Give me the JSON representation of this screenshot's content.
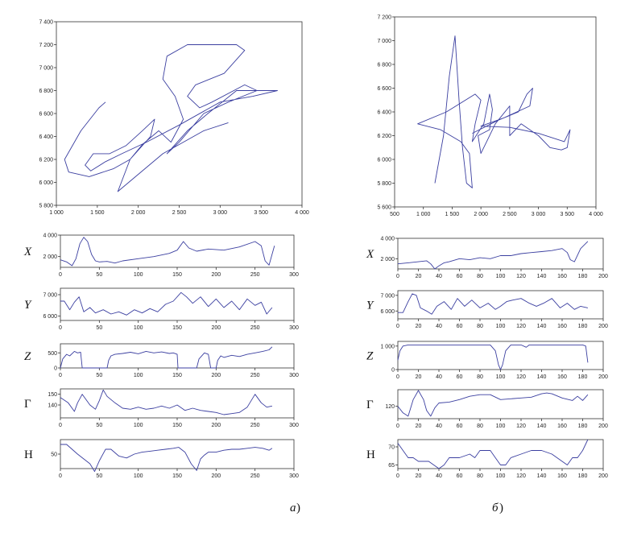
{
  "captions": {
    "a_letter": "а",
    "b_letter": "б",
    "paren": ")"
  },
  "colors": {
    "line": "#3b3fa0",
    "axis": "#333333"
  },
  "chart_data": [
    {
      "type": "line",
      "panel": "a",
      "role": "signature",
      "xlim": [
        1000,
        4000
      ],
      "ylim": [
        5800,
        7400
      ],
      "xticks": [
        "1 000",
        "1 500",
        "2 000",
        "2 500",
        "3 000",
        "3 500",
        "4 000"
      ],
      "yticks": [
        "5 800",
        "6 000",
        "6 200",
        "6 400",
        "6 600",
        "6 800",
        "7 000",
        "7 200",
        "7 400"
      ],
      "points": [
        [
          1600,
          6700
        ],
        [
          1520,
          6650
        ],
        [
          1300,
          6450
        ],
        [
          1100,
          6200
        ],
        [
          1150,
          6090
        ],
        [
          1400,
          6050
        ],
        [
          1700,
          6120
        ],
        [
          1900,
          6200
        ],
        [
          2050,
          6330
        ],
        [
          2250,
          6450
        ],
        [
          2400,
          6350
        ],
        [
          2550,
          6550
        ],
        [
          2450,
          6750
        ],
        [
          2300,
          6900
        ],
        [
          2350,
          7100
        ],
        [
          2600,
          7200
        ],
        [
          3200,
          7200
        ],
        [
          3300,
          7150
        ],
        [
          3050,
          6950
        ],
        [
          2700,
          6850
        ],
        [
          2600,
          6750
        ],
        [
          2750,
          6650
        ],
        [
          2900,
          6700
        ],
        [
          3300,
          6850
        ],
        [
          3450,
          6800
        ],
        [
          3100,
          6700
        ],
        [
          2800,
          6600
        ],
        [
          2500,
          6350
        ],
        [
          2350,
          6250
        ],
        [
          2600,
          6450
        ],
        [
          2850,
          6600
        ],
        [
          3200,
          6800
        ],
        [
          3700,
          6800
        ],
        [
          3400,
          6750
        ],
        [
          3000,
          6700
        ],
        [
          2500,
          6500
        ],
        [
          2100,
          6350
        ],
        [
          1800,
          6250
        ],
        [
          1600,
          6180
        ],
        [
          1420,
          6100
        ],
        [
          1350,
          6150
        ],
        [
          1450,
          6250
        ],
        [
          1650,
          6250
        ],
        [
          1850,
          6320
        ],
        [
          2050,
          6450
        ],
        [
          2200,
          6550
        ],
        [
          2150,
          6400
        ],
        [
          1900,
          6200
        ],
        [
          1750,
          5920
        ],
        [
          2300,
          6250
        ],
        [
          2800,
          6450
        ],
        [
          3100,
          6520
        ]
      ]
    },
    {
      "type": "line",
      "panel": "b",
      "role": "signature",
      "xlim": [
        500,
        4000
      ],
      "ylim": [
        5600,
        7200
      ],
      "xticks": [
        "500",
        "1 000",
        "1 500",
        "2 000",
        "2 500",
        "3 000",
        "3 500",
        "4 000"
      ],
      "yticks": [
        "5 600",
        "5 800",
        "6 000",
        "6 200",
        "6 400",
        "6 600",
        "6 800",
        "7 000",
        "7 200"
      ],
      "points": [
        [
          1200,
          5800
        ],
        [
          1350,
          6200
        ],
        [
          1450,
          6700
        ],
        [
          1550,
          7040
        ],
        [
          1620,
          6500
        ],
        [
          1680,
          6100
        ],
        [
          1750,
          5800
        ],
        [
          1850,
          5760
        ],
        [
          1800,
          6050
        ],
        [
          1650,
          6150
        ],
        [
          1300,
          6250
        ],
        [
          900,
          6300
        ],
        [
          1400,
          6400
        ],
        [
          1900,
          6550
        ],
        [
          2000,
          6500
        ],
        [
          1900,
          6300
        ],
        [
          1850,
          6150
        ],
        [
          2050,
          6300
        ],
        [
          2150,
          6550
        ],
        [
          2200,
          6420
        ],
        [
          2150,
          6250
        ],
        [
          1950,
          6200
        ],
        [
          2000,
          6050
        ],
        [
          2100,
          6150
        ],
        [
          2250,
          6300
        ],
        [
          2500,
          6450
        ],
        [
          2500,
          6200
        ],
        [
          2700,
          6300
        ],
        [
          3000,
          6200
        ],
        [
          3200,
          6100
        ],
        [
          3400,
          6080
        ],
        [
          3500,
          6100
        ],
        [
          3550,
          6250
        ],
        [
          3450,
          6150
        ],
        [
          3000,
          6220
        ],
        [
          2500,
          6270
        ],
        [
          2000,
          6280
        ],
        [
          2400,
          6350
        ],
        [
          2850,
          6450
        ],
        [
          2900,
          6600
        ],
        [
          2800,
          6550
        ],
        [
          2650,
          6400
        ],
        [
          2300,
          6330
        ],
        [
          1850,
          6220
        ]
      ]
    },
    {
      "type": "line",
      "panel": "a",
      "label": "X",
      "xlim": [
        0,
        300
      ],
      "ylim": [
        1000,
        4000
      ],
      "xticks": [
        "0",
        "50",
        "100",
        "150",
        "200",
        "250",
        "300"
      ],
      "yticks": [
        "2 000",
        "4 000"
      ],
      "x": [
        0,
        8,
        15,
        20,
        25,
        30,
        35,
        40,
        45,
        50,
        60,
        70,
        80,
        100,
        120,
        140,
        150,
        158,
        165,
        175,
        190,
        210,
        230,
        250,
        258,
        263,
        268,
        275
      ],
      "y": [
        1700,
        1500,
        1150,
        1800,
        3200,
        3800,
        3400,
        2200,
        1600,
        1500,
        1550,
        1400,
        1600,
        1800,
        2000,
        2300,
        2600,
        3400,
        2800,
        2500,
        2700,
        2600,
        2900,
        3400,
        3000,
        1600,
        1200,
        3000
      ]
    },
    {
      "type": "line",
      "panel": "a",
      "label": "Y",
      "xlim": [
        0,
        300
      ],
      "ylim": [
        5800,
        7300
      ],
      "xticks": [
        "0",
        "50",
        "100",
        "150",
        "200",
        "250",
        "300"
      ],
      "yticks": [
        "6 000",
        "7 000"
      ],
      "x": [
        0,
        5,
        12,
        18,
        24,
        30,
        38,
        45,
        55,
        65,
        75,
        85,
        95,
        105,
        115,
        125,
        135,
        145,
        155,
        162,
        170,
        180,
        190,
        200,
        210,
        220,
        230,
        240,
        250,
        258,
        265,
        272
      ],
      "y": [
        6700,
        6700,
        6300,
        6650,
        6900,
        6200,
        6400,
        6150,
        6300,
        6100,
        6200,
        6050,
        6300,
        6150,
        6350,
        6200,
        6550,
        6700,
        7100,
        6900,
        6600,
        6900,
        6450,
        6800,
        6400,
        6700,
        6300,
        6800,
        6500,
        6650,
        6100,
        6400
      ]
    },
    {
      "type": "line",
      "panel": "a",
      "label": "Z",
      "xlim": [
        0,
        300
      ],
      "ylim": [
        0,
        800
      ],
      "xticks": [
        "0",
        "50",
        "100",
        "150",
        "200",
        "250",
        "300"
      ],
      "yticks": [
        "0",
        "500"
      ],
      "x": [
        0,
        3,
        8,
        12,
        18,
        22,
        26,
        28,
        29,
        60,
        62,
        65,
        70,
        80,
        90,
        100,
        110,
        120,
        130,
        140,
        145,
        150,
        151,
        175,
        178,
        185,
        190,
        193,
        195,
        200,
        202,
        206,
        210,
        220,
        230,
        240,
        250,
        260,
        268,
        272
      ],
      "y": [
        0,
        300,
        450,
        400,
        550,
        500,
        520,
        0,
        0,
        0,
        250,
        400,
        450,
        480,
        520,
        470,
        550,
        500,
        530,
        480,
        500,
        450,
        0,
        0,
        300,
        500,
        450,
        0,
        0,
        0,
        250,
        400,
        350,
        420,
        380,
        450,
        500,
        550,
        600,
        700
      ]
    },
    {
      "type": "line",
      "panel": "a",
      "label": "Г",
      "xlim": [
        0,
        300
      ],
      "ylim": [
        128,
        155
      ],
      "xticks": [
        "0",
        "50",
        "100",
        "150",
        "200",
        "250",
        "300"
      ],
      "yticks": [
        "140",
        "150"
      ],
      "x": [
        0,
        10,
        18,
        22,
        28,
        32,
        38,
        45,
        50,
        55,
        60,
        70,
        80,
        90,
        100,
        110,
        120,
        130,
        140,
        150,
        160,
        170,
        180,
        190,
        200,
        210,
        220,
        230,
        240,
        250,
        258,
        265,
        272
      ],
      "y": [
        147,
        142,
        134,
        142,
        150,
        146,
        140,
        136,
        144,
        154,
        148,
        142,
        137,
        136,
        138,
        136,
        137,
        139,
        137,
        140,
        135,
        137,
        135,
        134,
        133,
        131,
        132,
        133,
        138,
        150,
        142,
        138,
        139
      ]
    },
    {
      "type": "line",
      "panel": "a",
      "label": "H",
      "xlim": [
        0,
        300
      ],
      "ylim": [
        35,
        65
      ],
      "xticks": [
        "0",
        "50",
        "100",
        "150",
        "200",
        "250",
        "300"
      ],
      "yticks": [
        "50"
      ],
      "x": [
        0,
        8,
        15,
        22,
        30,
        38,
        44,
        50,
        58,
        65,
        75,
        85,
        95,
        105,
        115,
        125,
        135,
        145,
        152,
        160,
        168,
        175,
        180,
        185,
        190,
        200,
        210,
        220,
        230,
        240,
        250,
        260,
        268,
        272
      ],
      "y": [
        60,
        60,
        55,
        50,
        45,
        40,
        32,
        43,
        55,
        55,
        48,
        46,
        50,
        52,
        53,
        54,
        55,
        56,
        57,
        52,
        40,
        33,
        45,
        49,
        52,
        52,
        54,
        55,
        55,
        56,
        57,
        56,
        54,
        56
      ]
    },
    {
      "type": "line",
      "panel": "b",
      "label": "X",
      "xlim": [
        0,
        200
      ],
      "ylim": [
        1000,
        4000
      ],
      "xticks": [
        "0",
        "20",
        "40",
        "60",
        "80",
        "100",
        "120",
        "140",
        "160",
        "180",
        "200"
      ],
      "yticks": [
        "2 000",
        "4 000"
      ],
      "x": [
        0,
        10,
        20,
        28,
        32,
        36,
        40,
        45,
        50,
        60,
        70,
        80,
        90,
        100,
        110,
        120,
        130,
        140,
        150,
        160,
        165,
        168,
        172,
        178,
        185
      ],
      "y": [
        1500,
        1600,
        1700,
        1800,
        1500,
        1000,
        1300,
        1600,
        1700,
        2000,
        1900,
        2100,
        2000,
        2300,
        2300,
        2500,
        2600,
        2700,
        2800,
        3000,
        2600,
        1900,
        1700,
        3000,
        3700
      ]
    },
    {
      "type": "line",
      "panel": "b",
      "label": "Y",
      "xlim": [
        0,
        200
      ],
      "ylim": [
        5500,
        7300
      ],
      "xticks": [
        "0",
        "20",
        "40",
        "60",
        "80",
        "100",
        "120",
        "140",
        "160",
        "180",
        "200"
      ],
      "yticks": [
        "6 000",
        "7 000"
      ],
      "x": [
        0,
        5,
        10,
        14,
        18,
        22,
        28,
        33,
        38,
        45,
        52,
        58,
        65,
        72,
        80,
        88,
        95,
        100,
        106,
        112,
        120,
        128,
        135,
        142,
        150,
        158,
        165,
        172,
        178,
        185
      ],
      "y": [
        5900,
        5900,
        6600,
        7100,
        7000,
        6200,
        6000,
        5800,
        6300,
        6600,
        6100,
        6800,
        6300,
        6700,
        6200,
        6500,
        6100,
        6300,
        6600,
        6700,
        6800,
        6500,
        6300,
        6500,
        6800,
        6200,
        6500,
        6100,
        6300,
        6200
      ]
    },
    {
      "type": "line",
      "panel": "b",
      "label": "Z",
      "xlim": [
        0,
        200
      ],
      "ylim": [
        0,
        1200
      ],
      "xticks": [
        "0",
        "20",
        "40",
        "60",
        "80",
        "100",
        "120",
        "140",
        "160",
        "180",
        "200"
      ],
      "yticks": [
        "0",
        "1 000"
      ],
      "x": [
        0,
        2,
        5,
        10,
        20,
        40,
        60,
        80,
        90,
        95,
        98,
        100,
        102,
        105,
        110,
        120,
        125,
        128,
        130,
        140,
        160,
        180,
        183,
        185
      ],
      "y": [
        400,
        800,
        1000,
        1050,
        1050,
        1050,
        1050,
        1050,
        1050,
        800,
        200,
        0,
        200,
        800,
        1050,
        1050,
        950,
        1050,
        1050,
        1050,
        1050,
        1050,
        1000,
        300
      ]
    },
    {
      "type": "line",
      "panel": "b",
      "label": "Г",
      "xlim": [
        0,
        200
      ],
      "ylim": [
        105,
        140
      ],
      "xticks": [
        "0",
        "20",
        "40",
        "60",
        "80",
        "100",
        "120",
        "140",
        "160",
        "180",
        "200"
      ],
      "yticks": [
        "120"
      ],
      "x": [
        0,
        5,
        10,
        15,
        20,
        25,
        28,
        32,
        36,
        40,
        50,
        60,
        70,
        80,
        90,
        100,
        110,
        120,
        130,
        140,
        145,
        150,
        160,
        170,
        175,
        180,
        185
      ],
      "y": [
        120,
        112,
        108,
        128,
        139,
        128,
        115,
        108,
        118,
        124,
        125,
        128,
        132,
        134,
        134,
        128,
        129,
        130,
        131,
        135,
        136,
        135,
        130,
        127,
        132,
        127,
        134
      ]
    },
    {
      "type": "line",
      "panel": "b",
      "label": "H",
      "xlim": [
        0,
        200
      ],
      "ylim": [
        64,
        72
      ],
      "xticks": [
        "0",
        "20",
        "40",
        "60",
        "80",
        "100",
        "120",
        "140",
        "160",
        "180",
        "200"
      ],
      "yticks": [
        "65",
        "70"
      ],
      "x": [
        0,
        5,
        10,
        15,
        20,
        25,
        30,
        35,
        40,
        45,
        50,
        60,
        70,
        75,
        80,
        90,
        95,
        100,
        105,
        110,
        120,
        130,
        140,
        150,
        160,
        165,
        170,
        175,
        180,
        185
      ],
      "y": [
        71,
        69,
        67,
        67,
        66,
        66,
        66,
        65,
        64,
        65,
        67,
        67,
        68,
        67,
        69,
        69,
        67,
        65,
        65,
        67,
        68,
        69,
        69,
        68,
        66,
        65,
        67,
        67,
        69,
        72
      ]
    }
  ]
}
